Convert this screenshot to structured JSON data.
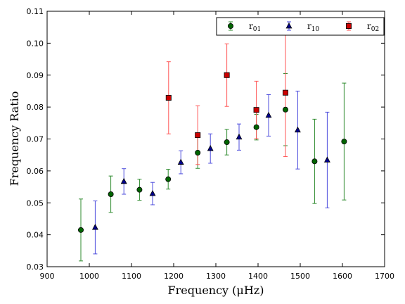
{
  "chart_data": {
    "type": "scatter",
    "xlabel": "Frequency  (μHz)",
    "ylabel": "Frequency Ratio",
    "xlim": [
      900,
      1700
    ],
    "ylim": [
      0.03,
      0.11
    ],
    "xticks": [
      900,
      1000,
      1100,
      1200,
      1300,
      1400,
      1500,
      1600,
      1700
    ],
    "yticks": [
      0.03,
      0.04,
      0.05,
      0.06,
      0.07,
      0.08,
      0.09,
      0.1,
      0.11
    ],
    "xtick_labels": [
      "900",
      "1000",
      "1100",
      "1200",
      "1300",
      "1400",
      "1500",
      "1600",
      "1700"
    ],
    "ytick_labels": [
      "0.03",
      "0.04",
      "0.05",
      "0.06",
      "0.07",
      "0.08",
      "0.09",
      "0.10",
      "0.11"
    ],
    "legend_position": "top-right",
    "grid": false,
    "series": [
      {
        "name": "r01",
        "name_base": "r",
        "name_sub": "01",
        "marker": "circle",
        "color": "#006400",
        "error_color": "#2e8b2e",
        "points": [
          {
            "x": 980,
            "y": 0.0415,
            "err": 0.0097
          },
          {
            "x": 1051,
            "y": 0.0527,
            "err": 0.0057
          },
          {
            "x": 1119,
            "y": 0.0541,
            "err": 0.0033
          },
          {
            "x": 1187,
            "y": 0.0574,
            "err": 0.0031
          },
          {
            "x": 1257,
            "y": 0.0657,
            "err": 0.0049
          },
          {
            "x": 1326,
            "y": 0.069,
            "err": 0.004
          },
          {
            "x": 1396,
            "y": 0.0737,
            "err": 0.004
          },
          {
            "x": 1465,
            "y": 0.0792,
            "err": 0.0113
          },
          {
            "x": 1534,
            "y": 0.063,
            "err": 0.0132
          },
          {
            "x": 1604,
            "y": 0.0692,
            "err": 0.0183
          }
        ]
      },
      {
        "name": "r10",
        "name_base": "r",
        "name_sub": "10",
        "marker": "triangle",
        "color": "#00008b",
        "error_color": "#4b4bdc",
        "points": [
          {
            "x": 1014,
            "y": 0.0423,
            "err": 0.0083
          },
          {
            "x": 1082,
            "y": 0.0567,
            "err": 0.004
          },
          {
            "x": 1150,
            "y": 0.0529,
            "err": 0.0035
          },
          {
            "x": 1217,
            "y": 0.0627,
            "err": 0.0036
          },
          {
            "x": 1287,
            "y": 0.067,
            "err": 0.0046
          },
          {
            "x": 1355,
            "y": 0.0706,
            "err": 0.0041
          },
          {
            "x": 1425,
            "y": 0.0774,
            "err": 0.0065
          },
          {
            "x": 1494,
            "y": 0.0728,
            "err": 0.0122
          },
          {
            "x": 1564,
            "y": 0.0634,
            "err": 0.015
          }
        ]
      },
      {
        "name": "r02",
        "name_base": "r",
        "name_sub": "02",
        "marker": "square",
        "color": "#cc0000",
        "error_color": "#ff5555",
        "points": [
          {
            "x": 1188,
            "y": 0.0829,
            "err": 0.0113
          },
          {
            "x": 1257,
            "y": 0.0712,
            "err": 0.0092
          },
          {
            "x": 1326,
            "y": 0.09,
            "err": 0.0098
          },
          {
            "x": 1396,
            "y": 0.0791,
            "err": 0.009
          },
          {
            "x": 1465,
            "y": 0.0845,
            "err": 0.02
          }
        ]
      }
    ]
  }
}
